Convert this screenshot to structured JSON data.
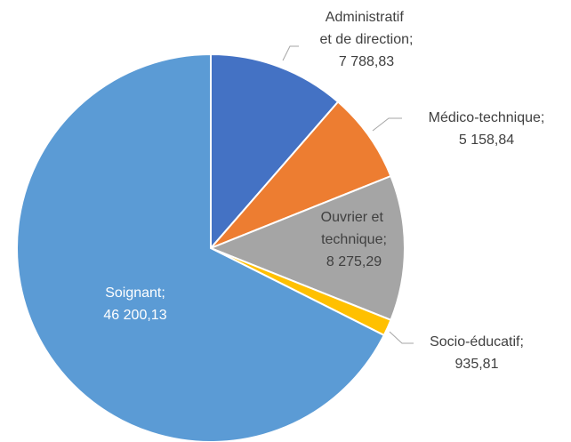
{
  "chart_data": {
    "type": "pie",
    "categories": [
      "Administratif et de direction",
      "Médico-technique",
      "Ouvrier et technique",
      "Socio-éducatif",
      "Soignant"
    ],
    "values": [
      7788.83,
      5158.84,
      8275.29,
      935.81,
      46200.13
    ],
    "value_labels": [
      "7 788,83",
      "5 158,84",
      "8 275,29",
      "935,81",
      "46 200,13"
    ],
    "label_separator": ";",
    "colors": [
      "#4472c4",
      "#ed7d31",
      "#a5a5a5",
      "#ffc000",
      "#5b9bd5"
    ]
  }
}
